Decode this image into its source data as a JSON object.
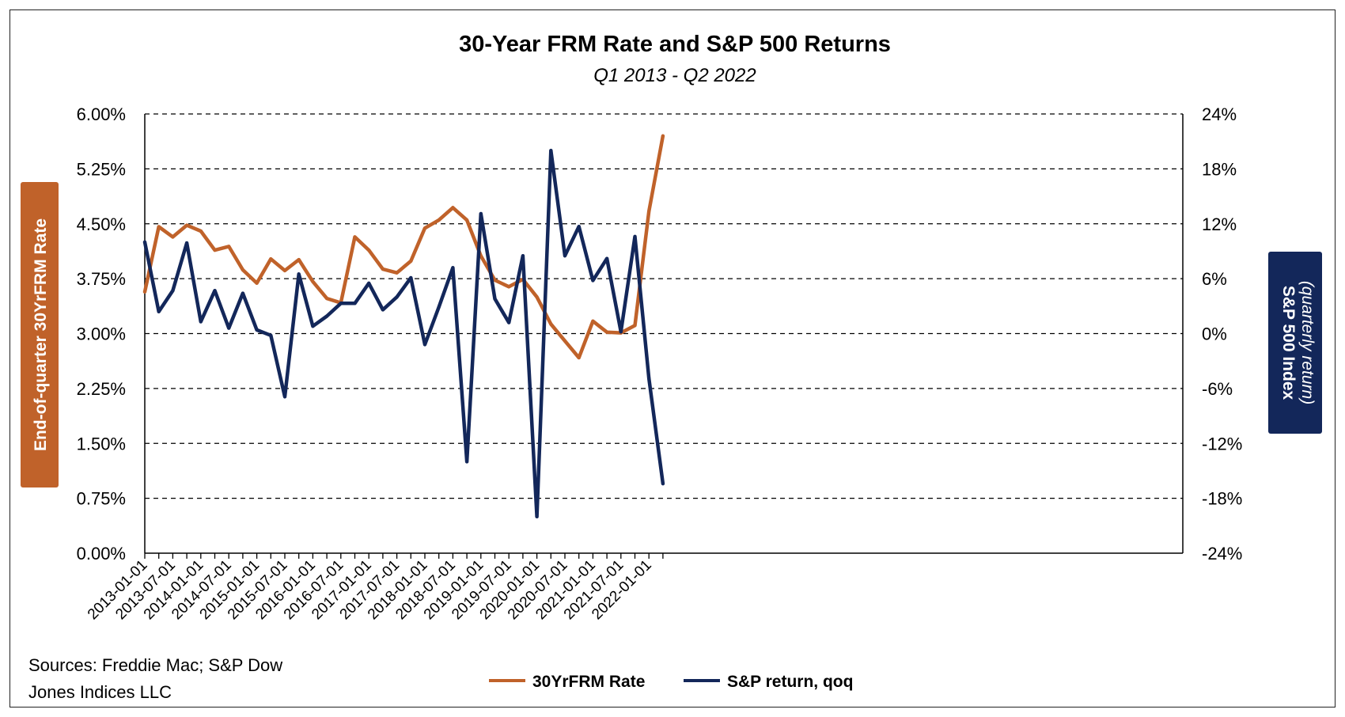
{
  "colors": {
    "frm": "#C0622A",
    "sp": "#13275A",
    "grid": "#000000"
  },
  "source": {
    "line1": "Sources: Freddie Mac; S&P Dow",
    "line2": "Jones Indices LLC"
  },
  "chart_data": {
    "type": "line",
    "title": "30-Year FRM Rate and S&P 500 Returns",
    "subtitle": "Q1 2013 - Q2 2022",
    "ylabel": "End-of-quarter 30YrFRM Rate",
    "y2label": "S&P 500 Index",
    "y2label_sub": "(quarterly return)",
    "ylim": [
      0,
      6
    ],
    "y2lim": [
      -24,
      24
    ],
    "yticks": [
      "0.00%",
      "0.75%",
      "1.50%",
      "2.25%",
      "3.00%",
      "3.75%",
      "4.50%",
      "5.25%",
      "6.00%"
    ],
    "y2ticks": [
      "-24%",
      "-18%",
      "-12%",
      "-6%",
      "0%",
      "6%",
      "12%",
      "18%",
      "24%"
    ],
    "xticks": [
      "2013-01-01",
      "2013-07-01",
      "2014-01-01",
      "2014-07-01",
      "2015-01-01",
      "2015-07-01",
      "2016-01-01",
      "2016-07-01",
      "2017-01-01",
      "2017-07-01",
      "2018-01-01",
      "2018-07-01",
      "2019-01-01",
      "2019-07-01",
      "2020-01-01",
      "2020-07-01",
      "2021-01-01",
      "2021-07-01",
      "2022-01-01"
    ],
    "grid": true,
    "legend_position": "bottom",
    "x": [
      "2013-01-01",
      "2013-04-01",
      "2013-07-01",
      "2013-10-01",
      "2014-01-01",
      "2014-04-01",
      "2014-07-01",
      "2014-10-01",
      "2015-01-01",
      "2015-04-01",
      "2015-07-01",
      "2015-10-01",
      "2016-01-01",
      "2016-04-01",
      "2016-07-01",
      "2016-10-01",
      "2017-01-01",
      "2017-04-01",
      "2017-07-01",
      "2017-10-01",
      "2018-01-01",
      "2018-04-01",
      "2018-07-01",
      "2018-10-01",
      "2019-01-01",
      "2019-04-01",
      "2019-07-01",
      "2019-10-01",
      "2020-01-01",
      "2020-04-01",
      "2020-07-01",
      "2020-10-01",
      "2021-01-01",
      "2021-04-01",
      "2021-07-01",
      "2021-10-01",
      "2022-01-01",
      "2022-04-01"
    ],
    "series": [
      {
        "name": "30YrFRM Rate",
        "axis": "left",
        "values": [
          3.57,
          4.46,
          4.32,
          4.48,
          4.4,
          4.14,
          4.19,
          3.87,
          3.69,
          4.02,
          3.86,
          4.01,
          3.71,
          3.48,
          3.42,
          4.32,
          4.14,
          3.88,
          3.83,
          3.99,
          4.44,
          4.55,
          4.72,
          4.55,
          4.06,
          3.73,
          3.64,
          3.74,
          3.5,
          3.13,
          2.9,
          2.67,
          3.17,
          3.02,
          3.01,
          3.11,
          4.67,
          5.7
        ]
      },
      {
        "name": "S&P return, qoq",
        "axis": "right",
        "values": [
          10.0,
          2.4,
          4.7,
          9.9,
          1.3,
          4.7,
          0.6,
          4.4,
          0.4,
          -0.2,
          -6.9,
          6.5,
          0.8,
          1.9,
          3.3,
          3.3,
          5.5,
          2.6,
          4.0,
          6.1,
          -1.2,
          2.9,
          7.2,
          -14.0,
          13.1,
          3.8,
          1.2,
          8.5,
          -20.0,
          20.0,
          8.5,
          11.7,
          5.8,
          8.2,
          0.2,
          10.6,
          -4.9,
          -16.4
        ]
      }
    ]
  }
}
